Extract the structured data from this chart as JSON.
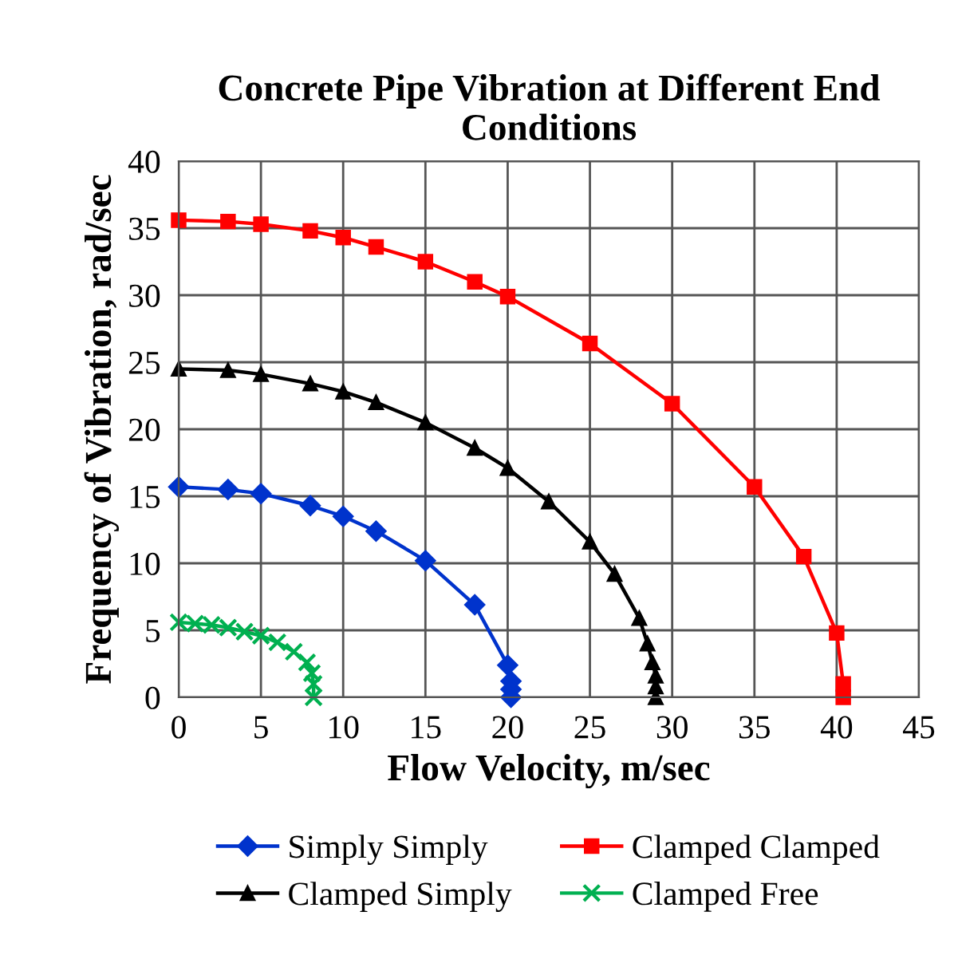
{
  "chart_data": {
    "type": "line",
    "title": "Concrete Pipe Vibration at Different End Conditions",
    "xlabel": "Flow Velocity, m/sec",
    "ylabel": "Frequency of Vibration, rad/sec",
    "xlim": [
      0,
      45
    ],
    "xticks": [
      0,
      5,
      10,
      15,
      20,
      25,
      30,
      35,
      40,
      45
    ],
    "ylim": [
      0,
      40
    ],
    "yticks": [
      0,
      5,
      10,
      15,
      20,
      25,
      30,
      35,
      40
    ],
    "grid": true,
    "legend": "bottom",
    "series": [
      {
        "name": "Simply Simply",
        "color": "#0033cc",
        "marker": "diamond",
        "x": [
          0,
          3,
          5,
          8,
          10,
          12,
          15,
          18,
          20,
          20.2,
          20.2,
          20.2
        ],
        "values": [
          15.7,
          15.5,
          15.2,
          14.3,
          13.5,
          12.4,
          10.2,
          6.9,
          2.4,
          1.2,
          0.6,
          0
        ]
      },
      {
        "name": "Clamped Clamped",
        "color": "#ff0000",
        "marker": "square",
        "x": [
          0,
          3,
          5,
          8,
          10,
          12,
          15,
          18,
          20,
          25,
          30,
          35,
          38,
          40,
          40.4,
          40.4
        ],
        "values": [
          35.6,
          35.5,
          35.3,
          34.8,
          34.3,
          33.6,
          32.5,
          31,
          29.9,
          26.4,
          21.9,
          15.7,
          10.5,
          4.8,
          1,
          0
        ]
      },
      {
        "name": "Clamped Simply",
        "color": "#000000",
        "marker": "triangle",
        "x": [
          0,
          3,
          5,
          8,
          10,
          12,
          15,
          18,
          20,
          22.5,
          25,
          26.5,
          28,
          28.5,
          28.8,
          29,
          29,
          29
        ],
        "values": [
          24.5,
          24.4,
          24.1,
          23.4,
          22.8,
          22,
          20.5,
          18.6,
          17.1,
          14.6,
          11.6,
          9.2,
          5.9,
          4,
          2.6,
          1.6,
          0.8,
          0
        ]
      },
      {
        "name": "Clamped Free",
        "color": "#00b050",
        "marker": "cross",
        "x": [
          0,
          1,
          2,
          3,
          4,
          5,
          6,
          7,
          7.8,
          8.1,
          8.2,
          8.2
        ],
        "values": [
          5.6,
          5.5,
          5.4,
          5.2,
          4.9,
          4.6,
          4.1,
          3.4,
          2.6,
          1.8,
          1,
          0
        ]
      }
    ]
  }
}
